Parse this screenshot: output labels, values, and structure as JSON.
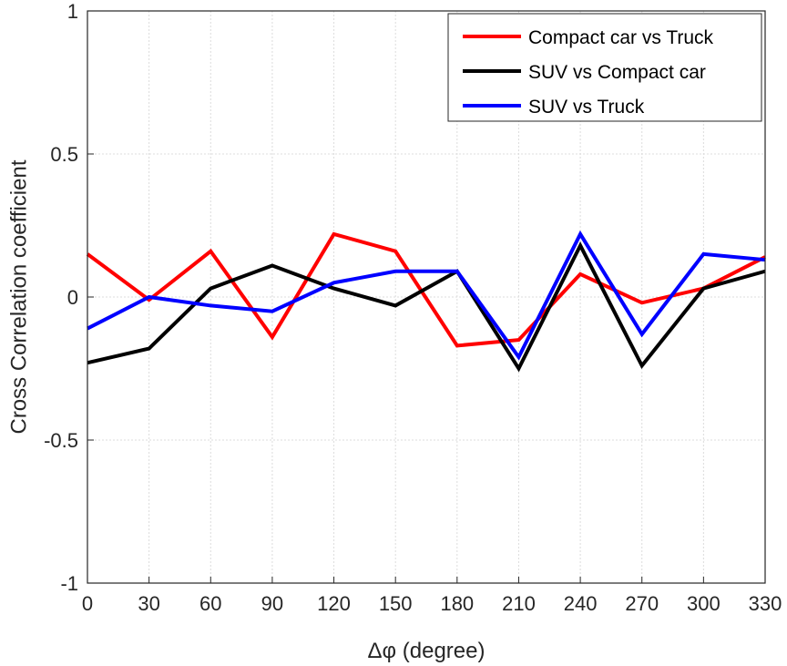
{
  "chart_data": {
    "type": "line",
    "xlabel": "Δφ (degree)",
    "ylabel": "Cross Correlation coefficient",
    "x": [
      0,
      30,
      60,
      90,
      120,
      150,
      180,
      210,
      240,
      270,
      300,
      330
    ],
    "xticks": [
      "0",
      "30",
      "60",
      "90",
      "120",
      "150",
      "180",
      "210",
      "240",
      "270",
      "300",
      "330"
    ],
    "yticks": [
      "-1",
      "-0.5",
      "0",
      "0.5",
      "1"
    ],
    "xlim": [
      0,
      330
    ],
    "ylim": [
      -1,
      1
    ],
    "grid": true,
    "legend_position": "top-right",
    "series": [
      {
        "name": "Compact car vs Truck",
        "color": "#ff0000",
        "values": [
          0.15,
          -0.01,
          0.16,
          -0.14,
          0.22,
          0.16,
          -0.17,
          -0.15,
          0.08,
          -0.02,
          0.03,
          0.14
        ]
      },
      {
        "name": "SUV vs Compact car",
        "color": "#000000",
        "values": [
          -0.23,
          -0.18,
          0.03,
          0.11,
          0.03,
          -0.03,
          0.09,
          -0.25,
          0.18,
          -0.24,
          0.03,
          0.09
        ]
      },
      {
        "name": "SUV vs Truck",
        "color": "#0000ff",
        "values": [
          -0.11,
          0.0,
          -0.03,
          -0.05,
          0.05,
          0.09,
          0.09,
          -0.21,
          0.22,
          -0.13,
          0.15,
          0.13
        ]
      }
    ]
  }
}
